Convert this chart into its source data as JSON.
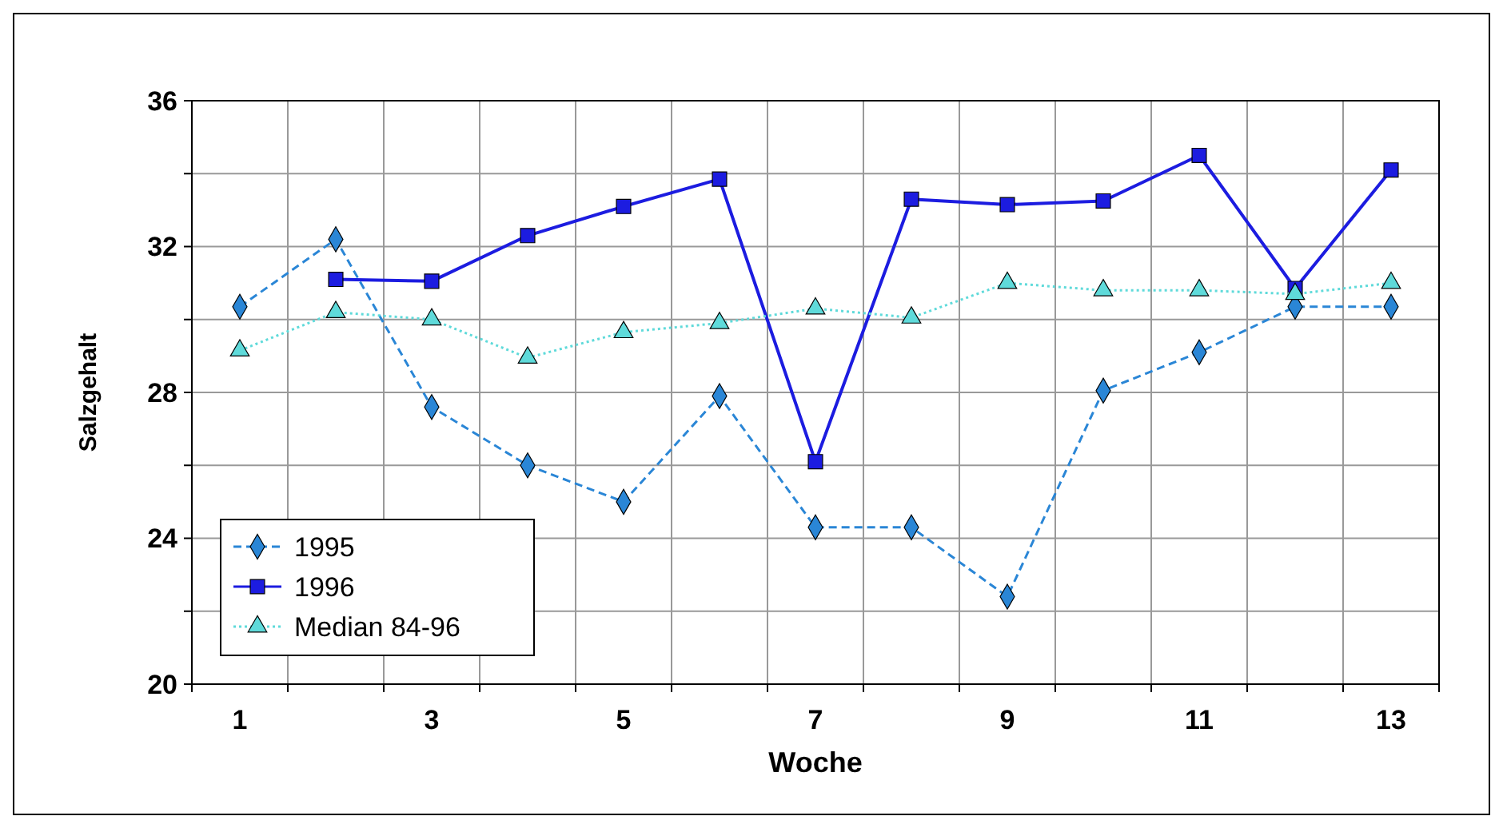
{
  "chart_data": {
    "type": "line",
    "xlabel": "Woche",
    "ylabel": "Salzgehalt",
    "categories": [
      "1",
      null,
      "3",
      null,
      "5",
      null,
      "7",
      null,
      "9",
      null,
      "11",
      null,
      "13"
    ],
    "ylim": [
      20,
      36
    ],
    "yticks": [
      20,
      {
        "value": 22,
        "label": null
      },
      24,
      {
        "value": 26,
        "label": null
      },
      28,
      {
        "value": 30,
        "label": null
      },
      32,
      {
        "value": 34,
        "label": null
      },
      36
    ],
    "grid": true,
    "legend": "bottom left",
    "series": [
      {
        "name": "1995",
        "color": "#2a86d6",
        "marker": "diamond",
        "line_style": "dashed",
        "values": [
          30.35,
          32.2,
          27.6,
          26.0,
          25.0,
          27.9,
          24.3,
          24.3,
          22.4,
          28.05,
          29.1,
          30.35,
          30.35
        ]
      },
      {
        "name": "1996",
        "color": "#1c1ce0",
        "marker": "square",
        "line_style": "solid",
        "values": [
          null,
          31.1,
          31.05,
          32.3,
          33.1,
          33.85,
          26.1,
          33.3,
          33.15,
          33.25,
          34.5,
          30.85,
          34.1
        ]
      },
      {
        "name": "Median 84-96",
        "color": "#5fdada",
        "marker": "triangle",
        "line_style": "dotted",
        "values": [
          29.15,
          30.2,
          30.0,
          28.95,
          29.65,
          29.9,
          30.3,
          30.05,
          31.0,
          30.8,
          30.8,
          30.7,
          31.0
        ]
      }
    ]
  }
}
